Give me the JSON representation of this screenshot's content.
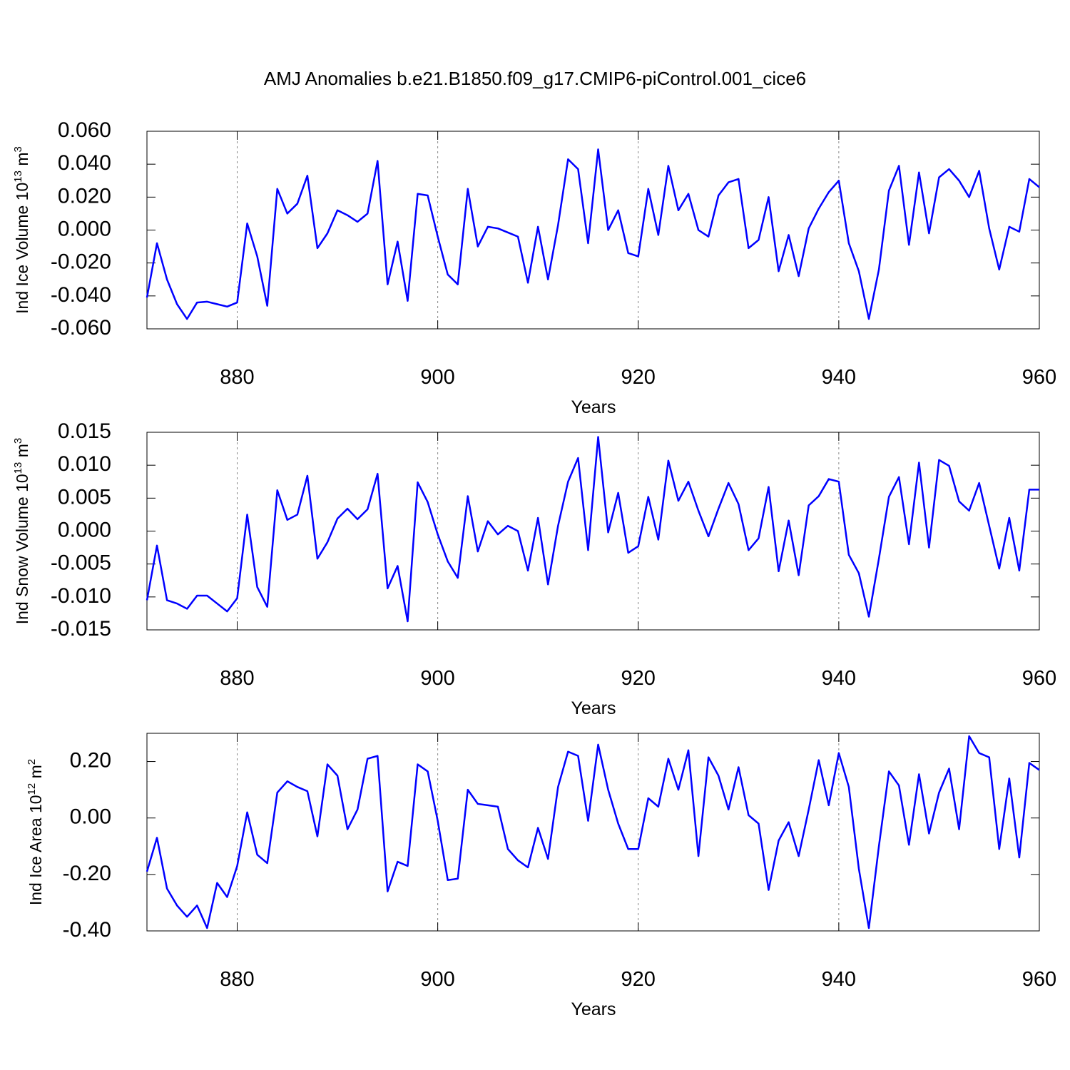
{
  "title": "AMJ Anomalies b.e21.B1850.f09_g17.CMIP6-piControl.001_cice6",
  "chart_data": [
    {
      "type": "line",
      "xlabel": "Years",
      "ylabel": [
        "Ind Ice Volume 10",
        "13",
        " m",
        "3"
      ],
      "color": "#0000ff",
      "grid": true,
      "xlim": [
        871,
        960
      ],
      "xticks": [
        880,
        900,
        920,
        940,
        960
      ],
      "ylim": [
        -0.06,
        0.06
      ],
      "yticks": [
        {
          "value": -0.06,
          "label": "-0.060"
        },
        {
          "value": -0.04,
          "label": "-0.040"
        },
        {
          "value": -0.02,
          "label": "-0.020"
        },
        {
          "value": 0,
          "label": "0.000"
        },
        {
          "value": 0.02,
          "label": "0.020"
        },
        {
          "value": 0.04,
          "label": "0.040"
        },
        {
          "value": 0.06,
          "label": "0.060"
        }
      ],
      "x": [
        871,
        872,
        873,
        874,
        875,
        876,
        877,
        878,
        879,
        880,
        881,
        882,
        883,
        884,
        885,
        886,
        887,
        888,
        889,
        890,
        891,
        892,
        893,
        894,
        895,
        896,
        897,
        898,
        899,
        900,
        901,
        902,
        903,
        904,
        905,
        906,
        907,
        908,
        909,
        910,
        911,
        912,
        913,
        914,
        915,
        916,
        917,
        918,
        919,
        920,
        921,
        922,
        923,
        924,
        925,
        926,
        927,
        928,
        929,
        930,
        931,
        932,
        933,
        934,
        935,
        936,
        937,
        938,
        939,
        940,
        941,
        942,
        943,
        944,
        945,
        946,
        947,
        948,
        949,
        950,
        951,
        952,
        953,
        954,
        955,
        956,
        957,
        958,
        959,
        960
      ],
      "values": [
        -0.041,
        -0.008,
        -0.03,
        -0.045,
        -0.054,
        -0.044,
        -0.0435,
        -0.045,
        -0.0465,
        -0.044,
        0.004,
        -0.016,
        -0.046,
        0.025,
        0.01,
        0.016,
        0.033,
        -0.011,
        -0.002,
        0.012,
        0.009,
        0.005,
        0.01,
        0.042,
        -0.033,
        -0.007,
        -0.043,
        0.022,
        0.021,
        -0.004,
        -0.027,
        -0.033,
        0.025,
        -0.01,
        0.002,
        0.001,
        -0.0015,
        -0.004,
        -0.032,
        0.002,
        -0.03,
        0.003,
        0.043,
        0.037,
        -0.008,
        0.049,
        0.0,
        0.012,
        -0.014,
        -0.016,
        0.025,
        -0.003,
        0.039,
        0.012,
        0.022,
        0.0,
        -0.004,
        0.021,
        0.029,
        0.031,
        -0.011,
        -0.006,
        0.02,
        -0.025,
        -0.003,
        -0.028,
        0.001,
        0.013,
        0.023,
        0.03,
        -0.008,
        -0.025,
        -0.054,
        -0.024,
        0.024,
        0.039,
        -0.009,
        0.035,
        -0.002,
        0.032,
        0.037,
        0.03,
        0.02,
        0.036,
        0.001,
        -0.024,
        0.002,
        -0.001,
        0.031,
        0.026
      ]
    },
    {
      "type": "line",
      "xlabel": "Years",
      "ylabel": [
        "Ind Snow Volume 10",
        "13",
        " m",
        "3"
      ],
      "color": "#0000ff",
      "grid": true,
      "xlim": [
        871,
        960
      ],
      "xticks": [
        880,
        900,
        920,
        940,
        960
      ],
      "ylim": [
        -0.015,
        0.015
      ],
      "yticks": [
        {
          "value": -0.015,
          "label": "-0.015"
        },
        {
          "value": -0.01,
          "label": "-0.010"
        },
        {
          "value": -0.005,
          "label": "-0.005"
        },
        {
          "value": 0,
          "label": "0.000"
        },
        {
          "value": 0.005,
          "label": "0.005"
        },
        {
          "value": 0.01,
          "label": "0.010"
        },
        {
          "value": 0.015,
          "label": "0.015"
        }
      ],
      "x": [
        871,
        872,
        873,
        874,
        875,
        876,
        877,
        878,
        879,
        880,
        881,
        882,
        883,
        884,
        885,
        886,
        887,
        888,
        889,
        890,
        891,
        892,
        893,
        894,
        895,
        896,
        897,
        898,
        899,
        900,
        901,
        902,
        903,
        904,
        905,
        906,
        907,
        908,
        909,
        910,
        911,
        912,
        913,
        914,
        915,
        916,
        917,
        918,
        919,
        920,
        921,
        922,
        923,
        924,
        925,
        926,
        927,
        928,
        929,
        930,
        931,
        932,
        933,
        934,
        935,
        936,
        937,
        938,
        939,
        940,
        941,
        942,
        943,
        944,
        945,
        946,
        947,
        948,
        949,
        950,
        951,
        952,
        953,
        954,
        955,
        956,
        957,
        958,
        959,
        960
      ],
      "values": [
        -0.0105,
        -0.0022,
        -0.0105,
        -0.011,
        -0.0118,
        -0.0098,
        -0.0098,
        -0.011,
        -0.0122,
        -0.0102,
        0.0025,
        -0.0085,
        -0.0115,
        0.0062,
        0.0017,
        0.0025,
        0.0084,
        -0.0042,
        -0.0017,
        0.0019,
        0.0034,
        0.0018,
        0.0033,
        0.0087,
        -0.0087,
        -0.0053,
        -0.0137,
        0.0074,
        0.0044,
        -0.0005,
        -0.0046,
        -0.0071,
        0.0053,
        -0.0031,
        0.0015,
        -0.0005,
        0.0008,
        0.0,
        -0.006,
        0.002,
        -0.0081,
        0.0008,
        0.0075,
        0.0111,
        -0.0029,
        0.0143,
        -0.0002,
        0.0058,
        -0.0033,
        -0.0023,
        0.0052,
        -0.0013,
        0.0107,
        0.0046,
        0.0075,
        0.0031,
        -0.0008,
        0.0034,
        0.0073,
        0.0041,
        -0.0029,
        -0.0011,
        0.0067,
        -0.0061,
        0.0016,
        -0.0067,
        0.0039,
        0.0053,
        0.0079,
        0.0075,
        -0.0036,
        -0.0064,
        -0.013,
        -0.0042,
        0.0052,
        0.0082,
        -0.002,
        0.0104,
        -0.0025,
        0.0108,
        0.0099,
        0.0045,
        0.0031,
        0.0073,
        0.0008,
        -0.0057,
        0.002,
        -0.006,
        0.0063,
        0.0063
      ]
    },
    {
      "type": "line",
      "xlabel": "Years",
      "ylabel": [
        "Ind Ice Area 10",
        "12",
        " m",
        "2"
      ],
      "color": "#0000ff",
      "grid": true,
      "xlim": [
        871,
        960
      ],
      "xticks": [
        880,
        900,
        920,
        940,
        960
      ],
      "ylim": [
        -0.4,
        0.3
      ],
      "yticks": [
        {
          "value": -0.4,
          "label": "-0.40"
        },
        {
          "value": -0.2,
          "label": "-0.20"
        },
        {
          "value": 0,
          "label": "0.00"
        },
        {
          "value": 0.2,
          "label": "0.20"
        }
      ],
      "x": [
        871,
        872,
        873,
        874,
        875,
        876,
        877,
        878,
        879,
        880,
        881,
        882,
        883,
        884,
        885,
        886,
        887,
        888,
        889,
        890,
        891,
        892,
        893,
        894,
        895,
        896,
        897,
        898,
        899,
        900,
        901,
        902,
        903,
        904,
        905,
        906,
        907,
        908,
        909,
        910,
        911,
        912,
        913,
        914,
        915,
        916,
        917,
        918,
        919,
        920,
        921,
        922,
        923,
        924,
        925,
        926,
        927,
        928,
        929,
        930,
        931,
        932,
        933,
        934,
        935,
        936,
        937,
        938,
        939,
        940,
        941,
        942,
        943,
        944,
        945,
        946,
        947,
        948,
        949,
        950,
        951,
        952,
        953,
        954,
        955,
        956,
        957,
        958,
        959,
        960
      ],
      "values": [
        -0.19,
        -0.07,
        -0.25,
        -0.31,
        -0.35,
        -0.31,
        -0.39,
        -0.23,
        -0.28,
        -0.17,
        0.02,
        -0.13,
        -0.16,
        0.09,
        0.13,
        0.11,
        0.095,
        -0.065,
        0.19,
        0.15,
        -0.04,
        0.03,
        0.21,
        0.22,
        -0.26,
        -0.155,
        -0.17,
        0.19,
        0.165,
        -0.01,
        -0.22,
        -0.215,
        0.1,
        0.05,
        0.045,
        0.04,
        -0.11,
        -0.15,
        -0.175,
        -0.035,
        -0.145,
        0.11,
        0.235,
        0.22,
        -0.01,
        0.26,
        0.1,
        -0.02,
        -0.11,
        -0.11,
        0.07,
        0.04,
        0.21,
        0.1,
        0.24,
        -0.135,
        0.215,
        0.15,
        0.03,
        0.18,
        0.01,
        -0.02,
        -0.255,
        -0.08,
        -0.015,
        -0.135,
        0.03,
        0.205,
        0.045,
        0.23,
        0.11,
        -0.18,
        -0.39,
        -0.1,
        0.165,
        0.115,
        -0.095,
        0.155,
        -0.055,
        0.09,
        0.175,
        -0.04,
        0.29,
        0.23,
        0.215,
        -0.11,
        0.14,
        -0.14,
        0.195,
        0.17
      ]
    }
  ]
}
